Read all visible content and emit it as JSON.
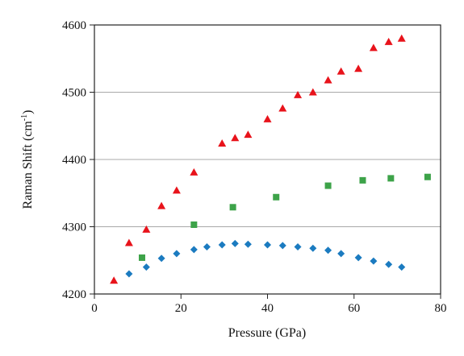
{
  "chart_data": {
    "type": "scatter",
    "xlabel": "Pressure (GPa)",
    "ylabel_base": "Raman Shift (cm",
    "ylabel_sup": "-1",
    "ylabel_end": ")",
    "xlim": [
      0,
      80
    ],
    "ylim": [
      4200,
      4600
    ],
    "x_ticks": [
      "0",
      "20",
      "40",
      "60",
      "80"
    ],
    "y_ticks": [
      "4200",
      "4300",
      "4400",
      "4500",
      "4600"
    ],
    "grid": "horizontal",
    "legend": "none",
    "series": [
      {
        "marker": "triangle",
        "color": "#e8131b",
        "points": [
          [
            4.5,
            4220
          ],
          [
            8,
            4276
          ],
          [
            12,
            4296
          ],
          [
            15.5,
            4331
          ],
          [
            19,
            4354
          ],
          [
            23,
            4381
          ],
          [
            29.5,
            4424
          ],
          [
            32.5,
            4432
          ],
          [
            35.5,
            4437
          ],
          [
            40,
            4460
          ],
          [
            43.5,
            4476
          ],
          [
            47,
            4496
          ],
          [
            50.5,
            4500
          ],
          [
            54,
            4518
          ],
          [
            57,
            4531
          ],
          [
            61,
            4535
          ],
          [
            64.5,
            4566
          ],
          [
            68,
            4575
          ],
          [
            71,
            4580
          ]
        ]
      },
      {
        "marker": "square",
        "color": "#3da349",
        "points": [
          [
            11,
            4254
          ],
          [
            23,
            4303
          ],
          [
            32,
            4329
          ],
          [
            42,
            4344
          ],
          [
            54,
            4361
          ],
          [
            62,
            4369
          ],
          [
            68.5,
            4372
          ],
          [
            77,
            4374
          ]
        ]
      },
      {
        "marker": "diamond",
        "color": "#1b7bc0",
        "points": [
          [
            8,
            4230
          ],
          [
            12,
            4240
          ],
          [
            15.5,
            4253
          ],
          [
            19,
            4260
          ],
          [
            23,
            4266
          ],
          [
            26,
            4270
          ],
          [
            29.5,
            4273
          ],
          [
            32.5,
            4275
          ],
          [
            35.5,
            4274
          ],
          [
            40,
            4273
          ],
          [
            43.5,
            4272
          ],
          [
            47,
            4270
          ],
          [
            50.5,
            4268
          ],
          [
            54,
            4265
          ],
          [
            57,
            4260
          ],
          [
            61,
            4254
          ],
          [
            64.5,
            4249
          ],
          [
            68,
            4244
          ],
          [
            71,
            4240
          ]
        ]
      }
    ]
  }
}
